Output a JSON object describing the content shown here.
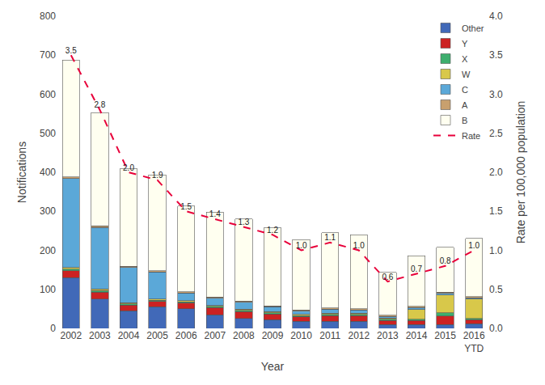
{
  "chart_data": {
    "type": "bar",
    "stacked": true,
    "xlabel": "Year",
    "ylabel": "Notifications",
    "y2label": "Rate per 100,000 population",
    "categories": [
      "2002",
      "2003",
      "2004",
      "2005",
      "2006",
      "2007",
      "2008",
      "2009",
      "2010",
      "2011",
      "2012",
      "2013",
      "2014",
      "2015",
      "2016\nYTD"
    ],
    "series": [
      {
        "name": "Other",
        "color": "#4169b8",
        "values": [
          130,
          75,
          45,
          55,
          50,
          35,
          25,
          22,
          18,
          18,
          18,
          10,
          10,
          10,
          12
        ]
      },
      {
        "name": "Y",
        "color": "#cc2222",
        "values": [
          18,
          18,
          15,
          14,
          15,
          18,
          18,
          15,
          12,
          15,
          15,
          10,
          10,
          22,
          10
        ]
      },
      {
        "name": "X",
        "color": "#3dae6e",
        "values": [
          4,
          4,
          3,
          3,
          3,
          3,
          3,
          3,
          3,
          3,
          3,
          3,
          3,
          8,
          3
        ]
      },
      {
        "name": "W",
        "color": "#d8c84a",
        "values": [
          4,
          4,
          3,
          3,
          3,
          3,
          3,
          3,
          3,
          3,
          3,
          3,
          25,
          45,
          50
        ]
      },
      {
        "name": "C",
        "color": "#5ba8d8",
        "values": [
          228,
          158,
          90,
          70,
          20,
          18,
          18,
          12,
          8,
          10,
          8,
          5,
          5,
          5,
          3
        ]
      },
      {
        "name": "A",
        "color": "#c8a06e",
        "values": [
          4,
          4,
          3,
          3,
          3,
          3,
          3,
          3,
          3,
          3,
          3,
          3,
          3,
          3,
          3
        ]
      },
      {
        "name": "B",
        "color": "#fffff0",
        "values": [
          300,
          290,
          250,
          245,
          220,
          218,
          210,
          200,
          180,
          193,
          190,
          110,
          130,
          115,
          150
        ]
      },
      {
        "name": "Rate",
        "type": "line",
        "axis": "y2",
        "color": "#e8003a",
        "line_style": "dashed",
        "data_labels": true,
        "values": [
          3.5,
          2.8,
          2.0,
          1.9,
          1.5,
          1.4,
          1.3,
          1.2,
          1.0,
          1.1,
          1.0,
          0.6,
          0.7,
          0.8,
          1.0
        ],
        "value_labels": [
          "3.5",
          "2.8",
          "2.0",
          "1.9",
          "1.5",
          "1.4",
          "1.3",
          "1.2",
          "1.0",
          "1.1",
          "1.0",
          "0.6",
          "0.7",
          "0.8",
          "1.0"
        ]
      }
    ],
    "ylim": [
      0,
      800
    ],
    "yticks": [
      0,
      100,
      200,
      300,
      400,
      500,
      600,
      700,
      800
    ],
    "y2lim": [
      0,
      4
    ],
    "y2ticks": [
      {
        "value": 0,
        "label": "0.0"
      },
      0.5,
      {
        "value": 1,
        "label": "1.0"
      },
      1.5,
      {
        "value": 2,
        "label": "2.0"
      },
      2.5,
      {
        "value": 3,
        "label": "3.0"
      },
      3.5,
      {
        "value": 4,
        "label": "4.0"
      }
    ],
    "grid": false,
    "legend": "upper right"
  }
}
